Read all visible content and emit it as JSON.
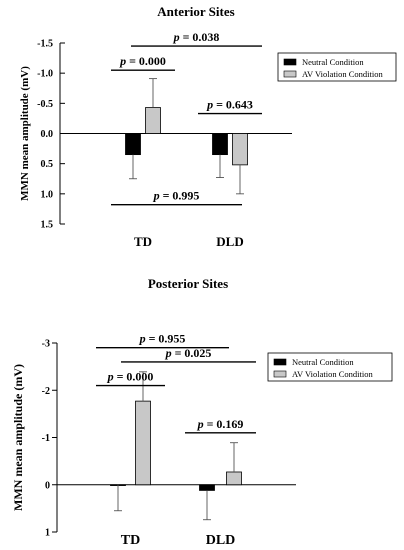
{
  "chart_data": [
    {
      "type": "bar",
      "title": "Anterior Sites",
      "ylabel": "MMN mean amplitude (mV)",
      "ylim": [
        1.5,
        -1.5
      ],
      "y_inverted": true,
      "yticks": [
        -1.5,
        -1.0,
        -0.5,
        0.0,
        0.5,
        1.0,
        1.5
      ],
      "ytick_labels": [
        "-1.5",
        "-1.0",
        "-0.5",
        "0.0",
        "0.5",
        "1.0",
        "1.5"
      ],
      "categories": [
        "TD",
        "DLD"
      ],
      "series": [
        {
          "name": "Neutral Condition",
          "color": "#000000",
          "values": [
            0.35,
            0.35
          ],
          "error": [
            0.4,
            0.38
          ]
        },
        {
          "name": "AV Violation Condition",
          "color": "#c8c8c8",
          "values": [
            -0.43,
            0.52
          ],
          "error": [
            0.48,
            0.48
          ]
        }
      ],
      "legend_position": "top-right",
      "annotations": [
        {
          "text": "p = 0.000",
          "from": [
            "TD",
            "Neutral Condition"
          ],
          "to": [
            "TD",
            "AV Violation Condition"
          ],
          "level": -1.05
        },
        {
          "text": "p = 0.038",
          "from": [
            "TD",
            "AV Violation Condition"
          ],
          "to": [
            "DLD",
            "AV Violation Condition"
          ],
          "level": -1.45
        },
        {
          "text": "p = 0.643",
          "from": [
            "DLD",
            "Neutral Condition"
          ],
          "to": [
            "DLD",
            "AV Violation Condition"
          ],
          "level": -0.33
        },
        {
          "text": "p = 0.995",
          "from": [
            "TD",
            "Neutral Condition"
          ],
          "to": [
            "DLD",
            "Neutral Condition"
          ],
          "level": 1.18
        }
      ]
    },
    {
      "type": "bar",
      "title": "Posterior Sites",
      "ylabel": "MMN mean amplitude (mV)",
      "ylim": [
        1,
        -3
      ],
      "y_inverted": true,
      "yticks": [
        -3,
        -2,
        -1,
        0,
        1
      ],
      "ytick_labels": [
        "-3",
        "-2",
        "-1",
        "0",
        "1"
      ],
      "categories": [
        "TD",
        "DLD"
      ],
      "series": [
        {
          "name": "Neutral Condition",
          "color": "#000000",
          "values": [
            0.0,
            0.12
          ],
          "error": [
            0.55,
            0.62
          ]
        },
        {
          "name": "AV Violation Condition",
          "color": "#c8c8c8",
          "values": [
            -1.77,
            -0.27
          ],
          "error": [
            0.62,
            0.62
          ]
        }
      ],
      "legend_position": "right",
      "annotations": [
        {
          "text": "p = 0.955",
          "from": [
            "TD",
            "Neutral Condition"
          ],
          "to": [
            "DLD",
            "Neutral Condition"
          ],
          "level": -2.9
        },
        {
          "text": "p = 0.025",
          "from": [
            "TD",
            "AV Violation Condition"
          ],
          "to": [
            "DLD",
            "AV Violation Condition"
          ],
          "level": -2.6
        },
        {
          "text": "p = 0.000",
          "from": [
            "TD",
            "Neutral Condition"
          ],
          "to": [
            "TD",
            "AV Violation Condition"
          ],
          "level": -2.1
        },
        {
          "text": "p = 0.169",
          "from": [
            "DLD",
            "Neutral Condition"
          ],
          "to": [
            "DLD",
            "AV Violation Condition"
          ],
          "level": -1.1
        }
      ]
    }
  ]
}
